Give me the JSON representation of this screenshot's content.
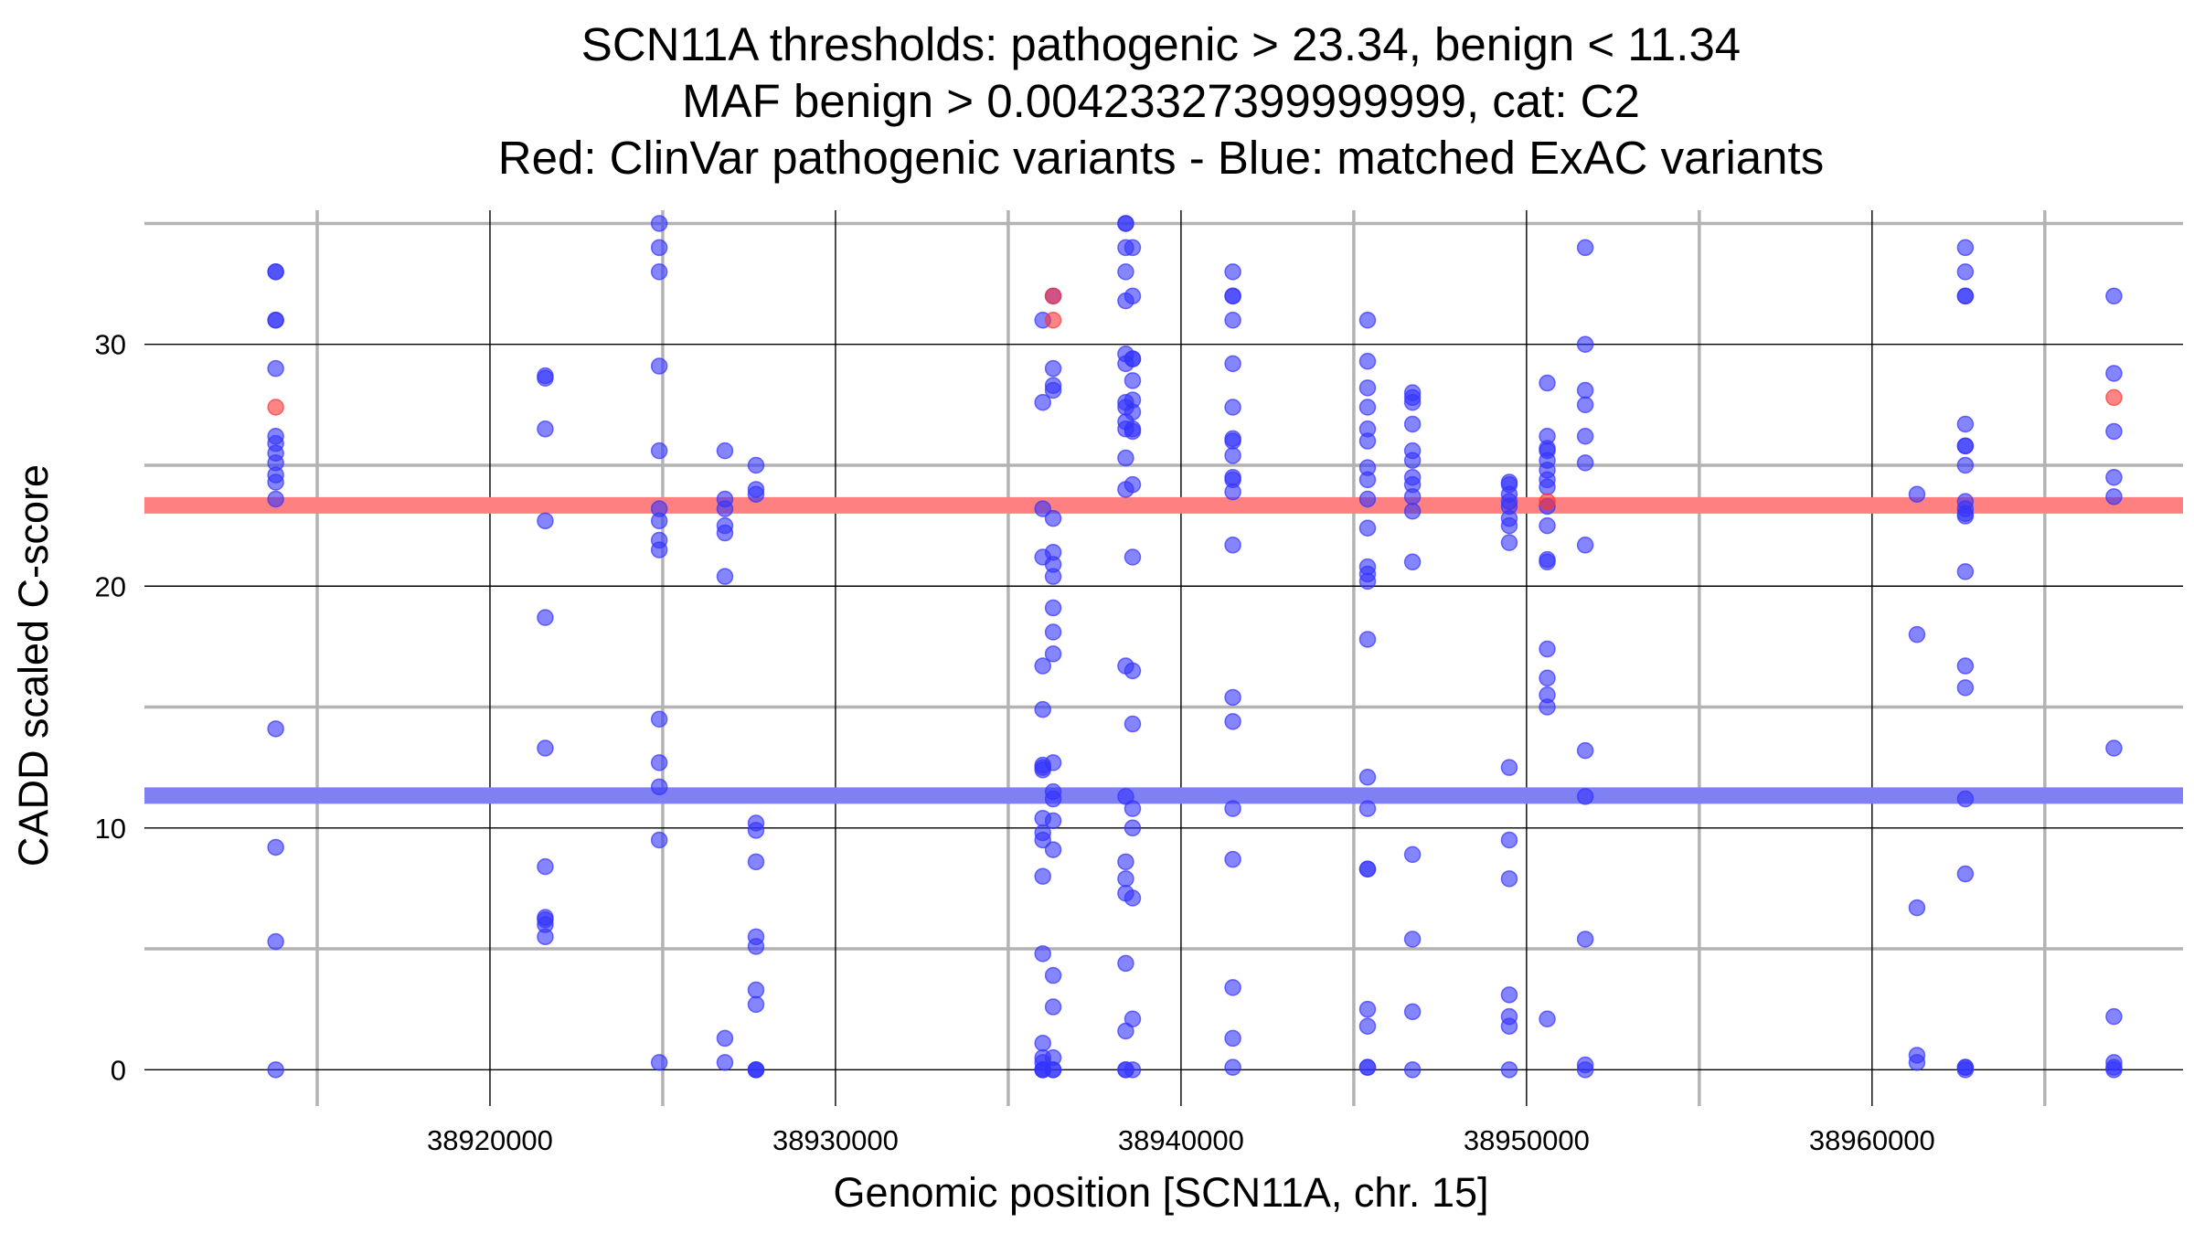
{
  "chart_data": {
    "type": "scatter",
    "title_lines": [
      "SCN11A thresholds: pathogenic > 23.34, benign < 11.34",
      "MAF benign > 0.00423327399999999, cat: C2",
      "Red: ClinVar pathogenic variants - Blue: matched ExAC variants"
    ],
    "xlabel": "Genomic position [SCN11A, chr. 15]",
    "ylabel": "CADD scaled C-score",
    "xlim": [
      38910000,
      38969000
    ],
    "ylim": [
      -1.5,
      36
    ],
    "x_major_ticks": [
      38920000,
      38930000,
      38940000,
      38950000,
      38960000
    ],
    "x_tick_labels": [
      "38920000",
      "38930000",
      "38940000",
      "38950000",
      "38960000"
    ],
    "x_minor_ticks": [
      38915000,
      38925000,
      38935000,
      38945000,
      38955000,
      38965000
    ],
    "y_major_ticks": [
      0,
      10,
      20,
      30
    ],
    "y_tick_labels": [
      "0",
      "10",
      "20",
      "30"
    ],
    "y_minor_ticks": [
      5,
      15,
      25,
      35
    ],
    "thresholds": [
      {
        "name": "pathogenic",
        "value": 23.34,
        "color": "#ff8080"
      },
      {
        "name": "benign",
        "value": 11.34,
        "color": "#8080f5"
      }
    ],
    "colors": {
      "pathogenic": "#ff3333",
      "exac": "#3333ff",
      "grid_major": "#000000",
      "grid_minor": "#b3b3b3"
    },
    "series": [
      {
        "name": "ClinVar pathogenic",
        "color": "#ff3333",
        "points": [
          [
            38913800,
            27.4
          ],
          [
            38936300,
            32.0
          ],
          [
            38936300,
            31.0
          ],
          [
            38950600,
            23.5
          ],
          [
            38967000,
            27.8
          ]
        ]
      },
      {
        "name": "matched ExAC",
        "color": "#3333ff",
        "columns": [
          {
            "x": 38913800,
            "y": [
              33,
              33,
              31,
              31,
              29,
              26.2,
              25.9,
              25.5,
              25.1,
              24.6,
              24.3,
              23.6,
              14.1,
              9.2,
              5.3,
              0
            ]
          },
          {
            "x": 38921600,
            "y": [
              28.7,
              28.6,
              26.5,
              22.7,
              18.7,
              13.3,
              8.4,
              6.3,
              6.2,
              6.0,
              5.5
            ]
          },
          {
            "x": 38924900,
            "y": [
              35,
              34,
              33,
              29.1,
              25.6,
              23.2,
              22.7,
              21.9,
              21.5,
              14.5,
              12.7,
              11.7,
              9.5,
              0.3
            ]
          },
          {
            "x": 38926800,
            "y": [
              25.6,
              23.6,
              23.2,
              22.5,
              22.2,
              20.4,
              1.3,
              0.3
            ]
          },
          {
            "x": 38927700,
            "y": [
              25.0,
              24.0,
              23.8,
              10.2,
              9.9,
              8.6,
              5.5,
              5.1,
              3.3,
              2.7,
              0,
              0,
              0
            ]
          },
          {
            "x": 38936000,
            "y": [
              31,
              27.6,
              23.2,
              21.2,
              16.7,
              14.9,
              12.6,
              12.4,
              12.5,
              10.4,
              9.8,
              9.5,
              8.0,
              4.8,
              1.1,
              0.5,
              0.3,
              0,
              0,
              0
            ]
          },
          {
            "x": 38936300,
            "y": [
              32,
              29,
              28.3,
              28.1,
              22.8,
              21.4,
              20.9,
              20.4,
              19.1,
              18.1,
              17.2,
              12.7,
              11.5,
              11.2,
              9.1,
              10.3,
              3.9,
              2.6,
              0.5,
              0,
              0
            ]
          },
          {
            "x": 38938400,
            "y": [
              35,
              35,
              34,
              33,
              31.8,
              29.6,
              29.2,
              27.6,
              27.4,
              26.8,
              26.5,
              25.3,
              24.0,
              16.7,
              11.3,
              8.6,
              7.9,
              7.3,
              4.4,
              1.6,
              0,
              0
            ]
          },
          {
            "x": 38938600,
            "y": [
              34,
              32,
              29.4,
              29.4,
              28.5,
              27.7,
              27.2,
              26.5,
              26.4,
              24.2,
              21.2,
              16.5,
              14.3,
              10.8,
              10.0,
              7.1,
              2.1,
              0
            ]
          },
          {
            "x": 38941500,
            "y": [
              33,
              32,
              32,
              31,
              29.2,
              27.4,
              26.1,
              26.0,
              25.4,
              24.5,
              24.4,
              23.9,
              21.7,
              15.4,
              14.4,
              10.8,
              8.7,
              3.4,
              1.3,
              0.1
            ]
          },
          {
            "x": 38945400,
            "y": [
              31,
              29.3,
              28.2,
              27.4,
              26.5,
              26.0,
              24.9,
              24.4,
              23.6,
              22.4,
              20.8,
              20.5,
              20.2,
              17.8,
              12.1,
              10.8,
              8.3,
              8.3,
              2.5,
              1.8,
              0.1,
              0.1
            ]
          },
          {
            "x": 38946700,
            "y": [
              28.0,
              27.8,
              27.6,
              26.7,
              25.6,
              25.2,
              24.5,
              24.2,
              23.7,
              23.1,
              21.0,
              8.9,
              5.4,
              2.4,
              0
            ]
          },
          {
            "x": 38949500,
            "y": [
              24.3,
              24.2,
              23.8,
              23.5,
              23.3,
              22.8,
              22.5,
              21.8,
              12.5,
              9.5,
              7.9,
              3.1,
              2.2,
              1.8,
              0
            ]
          },
          {
            "x": 38950600,
            "y": [
              28.4,
              26.2,
              25.7,
              25.6,
              25.2,
              24.8,
              24.4,
              24.1,
              23.3,
              22.5,
              21.1,
              21.0,
              17.4,
              16.2,
              15.5,
              15.0,
              2.1
            ]
          },
          {
            "x": 38951700,
            "y": [
              34,
              30,
              28.1,
              27.5,
              26.2,
              25.1,
              21.7,
              13.2,
              11.3,
              5.4,
              0.2,
              0
            ]
          },
          {
            "x": 38961300,
            "y": [
              23.8,
              18.0,
              6.7,
              0.6,
              0.3
            ]
          },
          {
            "x": 38962700,
            "y": [
              34,
              33,
              32,
              32,
              26.7,
              25.8,
              25.8,
              25.0,
              23.5,
              23.2,
              23.0,
              22.9,
              20.6,
              16.7,
              15.8,
              11.2,
              8.1,
              0.1,
              0.1,
              0
            ]
          },
          {
            "x": 38967000,
            "y": [
              32,
              28.8,
              26.4,
              24.5,
              23.7,
              13.3,
              2.2,
              0.3,
              0.1,
              0
            ]
          }
        ]
      }
    ]
  }
}
